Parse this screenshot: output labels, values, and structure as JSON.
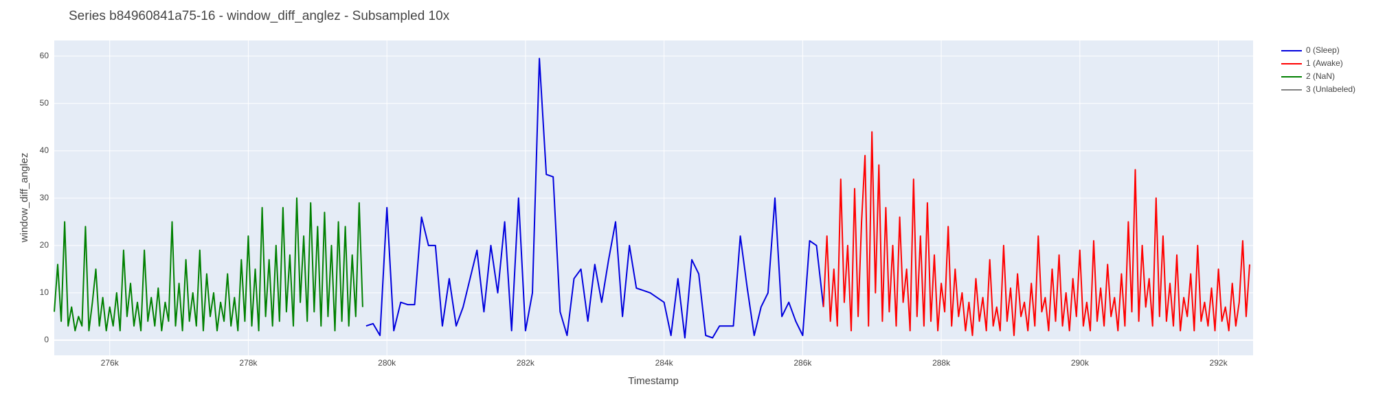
{
  "chart_data": {
    "type": "line",
    "title": "Series b84960841a75-16 - window_diff_anglez - Subsampled 10x",
    "x_label": "Timestamp",
    "y_label": "window_diff_anglez",
    "xlim": [
      275200,
      292500
    ],
    "ylim": [
      -3.2,
      63.3
    ],
    "xticks": [
      {
        "value": 276000,
        "label": "276k"
      },
      {
        "value": 278000,
        "label": "278k"
      },
      {
        "value": 280000,
        "label": "280k"
      },
      {
        "value": 282000,
        "label": "282k"
      },
      {
        "value": 284000,
        "label": "284k"
      },
      {
        "value": 286000,
        "label": "286k"
      },
      {
        "value": 288000,
        "label": "288k"
      },
      {
        "value": 290000,
        "label": "290k"
      },
      {
        "value": 292000,
        "label": "292k"
      }
    ],
    "yticks": [
      0,
      10,
      20,
      30,
      40,
      50,
      60
    ],
    "grid": true,
    "legend": "right",
    "series": [
      {
        "name": "0 (Sleep)",
        "color": "#0000dd",
        "x": [
          279700,
          279800,
          279900,
          280000,
          280100,
          280200,
          280300,
          280400,
          280500,
          280600,
          280700,
          280800,
          280900,
          281000,
          281100,
          281200,
          281300,
          281400,
          281500,
          281600,
          281700,
          281800,
          281900,
          282000,
          282100,
          282200,
          282300,
          282400,
          282500,
          282600,
          282700,
          282800,
          282900,
          283000,
          283100,
          283200,
          283300,
          283400,
          283500,
          283600,
          283700,
          283800,
          283900,
          284000,
          284100,
          284200,
          284300,
          284400,
          284500,
          284600,
          284700,
          284800,
          284900,
          285000,
          285100,
          285200,
          285300,
          285400,
          285500,
          285600,
          285700,
          285800,
          285900,
          286000,
          286100,
          286200,
          286300
        ],
        "values": [
          3,
          3.5,
          1,
          28,
          2,
          8,
          7.5,
          7.5,
          26,
          20,
          20,
          3,
          13,
          3,
          7,
          13,
          19,
          6,
          20,
          10,
          25,
          2,
          30,
          2,
          10,
          59.5,
          35,
          34.5,
          6,
          1,
          13,
          15,
          4,
          16,
          8,
          17,
          25,
          5,
          20,
          11,
          10.5,
          10,
          9,
          8,
          1,
          13,
          0.5,
          17,
          14,
          1,
          0.5,
          3,
          3,
          3,
          22,
          11,
          1,
          7,
          10,
          30,
          5,
          8,
          4,
          1,
          21,
          20,
          7
        ]
      },
      {
        "name": "1 (Awake)",
        "color": "#ff0000",
        "x": [
          286300,
          286350,
          286400,
          286450,
          286500,
          286550,
          286600,
          286650,
          286700,
          286750,
          286800,
          286850,
          286900,
          286950,
          287000,
          287050,
          287100,
          287150,
          287200,
          287250,
          287300,
          287350,
          287400,
          287450,
          287500,
          287550,
          287600,
          287650,
          287700,
          287750,
          287800,
          287850,
          287900,
          287950,
          288000,
          288050,
          288100,
          288150,
          288200,
          288250,
          288300,
          288350,
          288400,
          288450,
          288500,
          288550,
          288600,
          288650,
          288700,
          288750,
          288800,
          288850,
          288900,
          288950,
          289000,
          289050,
          289100,
          289150,
          289200,
          289250,
          289300,
          289350,
          289400,
          289450,
          289500,
          289550,
          289600,
          289650,
          289700,
          289750,
          289800,
          289850,
          289900,
          289950,
          290000,
          290050,
          290100,
          290150,
          290200,
          290250,
          290300,
          290350,
          290400,
          290450,
          290500,
          290550,
          290600,
          290650,
          290700,
          290750,
          290800,
          290850,
          290900,
          290950,
          291000,
          291050,
          291100,
          291150,
          291200,
          291250,
          291300,
          291350,
          291400,
          291450,
          291500,
          291550,
          291600,
          291650,
          291700,
          291750,
          291800,
          291850,
          291900,
          291950,
          292000,
          292050,
          292100,
          292150,
          292200,
          292250,
          292300,
          292350,
          292400,
          292450
        ],
        "values": [
          7,
          22,
          4,
          15,
          3,
          34,
          8,
          20,
          2,
          32,
          5,
          25,
          39,
          3,
          44,
          10,
          37,
          4,
          28,
          6,
          20,
          3,
          26,
          8,
          15,
          2,
          34,
          5,
          22,
          3,
          29,
          4,
          18,
          2,
          12,
          6,
          24,
          3,
          15,
          5,
          10,
          2,
          8,
          1,
          13,
          4,
          9,
          2,
          17,
          3,
          7,
          2,
          20,
          4,
          11,
          1,
          14,
          5,
          8,
          2,
          12,
          3,
          22,
          6,
          9,
          2,
          15,
          4,
          18,
          3,
          10,
          2,
          13,
          5,
          19,
          3,
          8,
          2,
          21,
          4,
          11,
          3,
          16,
          5,
          9,
          2,
          14,
          3,
          25,
          6,
          36,
          4,
          20,
          7,
          13,
          3,
          30,
          5,
          22,
          4,
          12,
          3,
          18,
          2,
          9,
          5,
          14,
          2,
          20,
          4,
          8,
          3,
          11,
          2,
          15,
          4,
          7,
          2,
          12,
          3,
          8,
          21,
          5,
          16
        ]
      },
      {
        "name": "2 (NaN)",
        "color": "#008000",
        "x": [
          275200,
          275250,
          275300,
          275350,
          275400,
          275450,
          275500,
          275550,
          275600,
          275650,
          275700,
          275750,
          275800,
          275850,
          275900,
          275950,
          276000,
          276050,
          276100,
          276150,
          276200,
          276250,
          276300,
          276350,
          276400,
          276450,
          276500,
          276550,
          276600,
          276650,
          276700,
          276750,
          276800,
          276850,
          276900,
          276950,
          277000,
          277050,
          277100,
          277150,
          277200,
          277250,
          277300,
          277350,
          277400,
          277450,
          277500,
          277550,
          277600,
          277650,
          277700,
          277750,
          277800,
          277850,
          277900,
          277950,
          278000,
          278050,
          278100,
          278150,
          278200,
          278250,
          278300,
          278350,
          278400,
          278450,
          278500,
          278550,
          278600,
          278650,
          278700,
          278750,
          278800,
          278850,
          278900,
          278950,
          279000,
          279050,
          279100,
          279150,
          279200,
          279250,
          279300,
          279350,
          279400,
          279450,
          279500,
          279550,
          279600,
          279650
        ],
        "values": [
          6,
          16,
          4,
          25,
          3,
          7,
          2,
          5,
          3,
          24,
          2,
          8,
          15,
          3,
          9,
          2,
          7,
          3,
          10,
          2,
          19,
          5,
          12,
          3,
          8,
          2,
          19,
          4,
          9,
          3,
          11,
          2,
          8,
          4,
          25,
          3,
          12,
          2,
          17,
          4,
          10,
          3,
          19,
          2,
          14,
          5,
          10,
          2,
          8,
          4,
          14,
          3,
          9,
          2,
          17,
          4,
          22,
          3,
          15,
          2,
          28,
          5,
          17,
          3,
          20,
          4,
          28,
          6,
          18,
          3,
          30,
          8,
          22,
          4,
          29,
          6,
          24,
          3,
          27,
          5,
          20,
          2,
          25,
          4,
          24,
          3,
          18,
          5,
          29,
          7
        ]
      },
      {
        "name": "3 (Unlabeled)",
        "color": "#808080",
        "x": [],
        "values": []
      }
    ]
  }
}
